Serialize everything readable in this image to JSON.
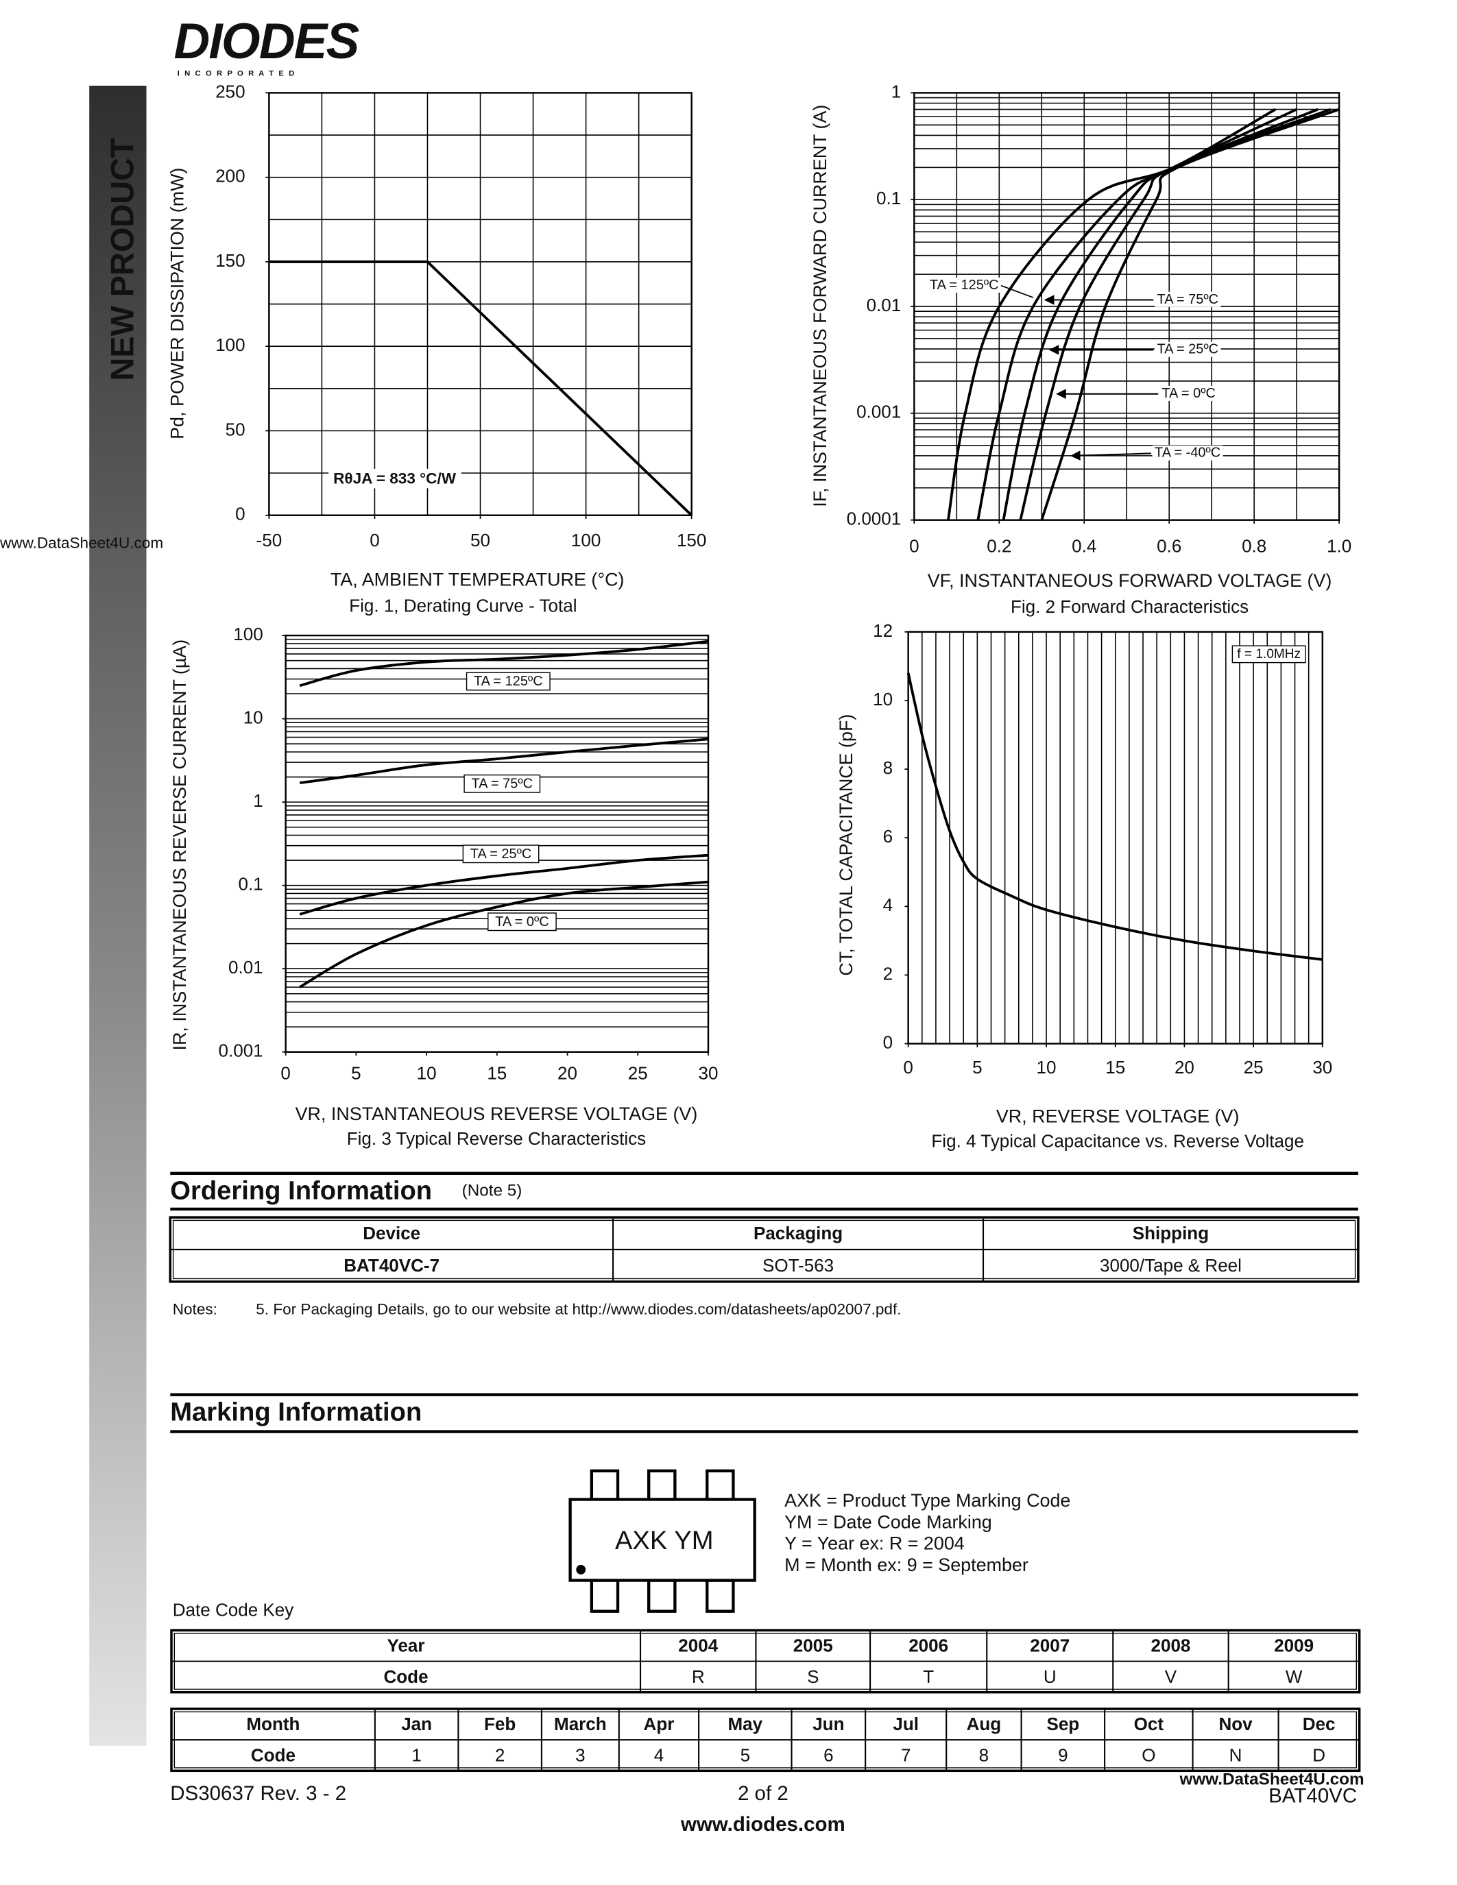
{
  "header": {
    "logo": "DIODES",
    "logo_sub": "I N C O R P O R A T E D"
  },
  "sidebar": "NEW PRODUCT",
  "watermark": "www.DataSheet4U.com",
  "chart_data": [
    {
      "type": "line",
      "interpolation": "linear",
      "title": "Fig. 1, Derating Curve - Total",
      "y_label": "Pd, POWER DISSIPATION (mW)",
      "x_label": "TA, AMBIENT TEMPERATURE (°C)",
      "annotation": "RθJA = 833 °C/W",
      "xlim": [
        -50,
        150
      ],
      "ylim": [
        0,
        250
      ],
      "xticks": [
        -50,
        0,
        50,
        100,
        150
      ],
      "yticks": [
        0,
        50,
        100,
        150,
        200,
        250
      ],
      "xgrid": [
        -50,
        -25,
        0,
        25,
        50,
        75,
        100,
        125,
        150
      ],
      "ygrid": [
        0,
        25,
        50,
        75,
        100,
        125,
        150,
        175,
        200,
        225,
        250
      ],
      "series": [
        {
          "color": "#000000",
          "x": [
            -50,
            25,
            150
          ],
          "values": [
            150,
            150,
            0
          ]
        }
      ]
    },
    {
      "type": "line",
      "interpolation": "smooth",
      "ylog": true,
      "title": "Fig. 2  Forward Characteristics",
      "y_label": "IF, INSTANTANEOUS FORWARD CURRENT (A)",
      "x_label": "VF, INSTANTANEOUS FORWARD VOLTAGE (V)",
      "xlim": [
        0,
        1
      ],
      "ylim": [
        0.0001,
        1
      ],
      "xticks": [
        0,
        0.2,
        0.4,
        0.6,
        0.8,
        {
          "value": 1,
          "label": "1.0"
        }
      ],
      "yticks": [
        0.0001,
        0.001,
        0.01,
        0.1,
        1
      ],
      "xgrid": [
        0,
        0.1,
        0.2,
        0.3,
        0.4,
        0.5,
        0.6,
        0.7,
        0.8,
        0.9,
        1
      ],
      "ygrid": [
        0.0001,
        0.0002,
        0.0003,
        0.0004,
        0.0005,
        0.0006,
        0.0007,
        0.0008,
        0.0009,
        0.001,
        0.002,
        0.003,
        0.004,
        0.005,
        0.006,
        0.007,
        0.008,
        0.009,
        0.01,
        0.02,
        0.03,
        0.04,
        0.05,
        0.06,
        0.07,
        0.08,
        0.09,
        0.1,
        0.2,
        0.3,
        0.4,
        0.5,
        0.6,
        0.7,
        0.8,
        0.9,
        1
      ],
      "series": [
        {
          "name": "TA = 125ºC",
          "color": "#000000",
          "x": [
            0.08,
            0.12,
            0.2,
            0.41,
            0.61,
            0.85
          ],
          "values": [
            0.0001,
            0.001,
            0.01,
            0.1,
            0.2,
            0.7
          ]
        },
        {
          "name": "TA = 75ºC",
          "color": "#000000",
          "x": [
            0.15,
            0.2,
            0.28,
            0.48,
            0.61,
            0.9
          ],
          "values": [
            0.0001,
            0.001,
            0.01,
            0.1,
            0.2,
            0.7
          ]
        },
        {
          "name": "TA = 25ºC",
          "color": "#000000",
          "x": [
            0.21,
            0.26,
            0.34,
            0.51,
            0.61,
            0.95
          ],
          "values": [
            0.0001,
            0.001,
            0.01,
            0.1,
            0.2,
            0.7
          ]
        },
        {
          "name": "TA = 0ºC",
          "color": "#000000",
          "x": [
            0.25,
            0.31,
            0.39,
            0.54,
            0.61,
            0.98
          ],
          "values": [
            0.0001,
            0.001,
            0.01,
            0.1,
            0.2,
            0.7
          ]
        },
        {
          "name": "TA = -40ºC",
          "color": "#000000",
          "x": [
            0.3,
            0.38,
            0.45,
            0.57,
            0.62,
            1
          ],
          "values": [
            0.0001,
            0.001,
            0.01,
            0.1,
            0.2,
            0.7
          ]
        }
      ]
    },
    {
      "type": "line",
      "interpolation": "smooth",
      "ylog": true,
      "title": "Fig. 3  Typical Reverse Characteristics",
      "y_label": "IR, INSTANTANEOUS REVERSE CURRENT (µA)",
      "x_label": "VR, INSTANTANEOUS REVERSE VOLTAGE (V)",
      "xlim": [
        0,
        30
      ],
      "ylim": [
        0.001,
        100
      ],
      "xticks": [
        0,
        5,
        10,
        15,
        20,
        25,
        30
      ],
      "yticks": [
        0.001,
        0.01,
        0.1,
        1,
        10,
        100
      ],
      "ygrid": [
        0.001,
        0.002,
        0.003,
        0.004,
        0.005,
        0.006,
        0.007,
        0.008,
        0.009,
        0.01,
        0.02,
        0.03,
        0.04,
        0.05,
        0.06,
        0.07,
        0.08,
        0.09,
        0.1,
        0.2,
        0.3,
        0.4,
        0.5,
        0.6,
        0.7,
        0.8,
        0.9,
        1,
        2,
        3,
        4,
        5,
        6,
        7,
        8,
        9,
        10,
        20,
        30,
        40,
        50,
        60,
        70,
        80,
        90,
        100
      ],
      "series": [
        {
          "name": "TA = 125ºC",
          "color": "#000000",
          "x": [
            1,
            5,
            10,
            15,
            20,
            25,
            30
          ],
          "values": [
            25,
            38,
            48,
            52,
            58,
            68,
            85
          ]
        },
        {
          "name": "TA = 75ºC",
          "color": "#000000",
          "x": [
            1,
            5,
            10,
            15,
            20,
            25,
            30
          ],
          "values": [
            1.7,
            2.1,
            2.8,
            3.3,
            4,
            4.8,
            5.7
          ]
        },
        {
          "name": "TA = 25ºC",
          "color": "#000000",
          "x": [
            1,
            5,
            10,
            15,
            20,
            25,
            30
          ],
          "values": [
            0.045,
            0.07,
            0.1,
            0.13,
            0.16,
            0.2,
            0.23
          ]
        },
        {
          "name": "TA = 0ºC",
          "color": "#000000",
          "x": [
            1,
            5,
            10,
            15,
            20,
            25,
            30
          ],
          "values": [
            0.006,
            0.015,
            0.033,
            0.055,
            0.08,
            0.095,
            0.11
          ]
        }
      ]
    },
    {
      "type": "line",
      "interpolation": "smooth",
      "title": "Fig. 4  Typical Capacitance vs. Reverse Voltage",
      "y_label": "CT, TOTAL CAPACITANCE (pF)",
      "x_label": "VR, REVERSE VOLTAGE (V)",
      "annotation": "f = 1.0MHz",
      "xlim": [
        0,
        30
      ],
      "ylim": [
        0,
        12
      ],
      "xticks": [
        0,
        5,
        10,
        15,
        20,
        25,
        30
      ],
      "yticks": [
        0,
        2,
        4,
        6,
        8,
        10,
        12
      ],
      "xgrid": [
        0,
        1,
        2,
        3,
        4,
        5,
        6,
        7,
        8,
        9,
        10,
        11,
        12,
        13,
        14,
        15,
        16,
        17,
        18,
        19,
        20,
        21,
        22,
        23,
        24,
        25,
        26,
        27,
        28,
        29,
        30
      ],
      "series": [
        {
          "color": "#000000",
          "x": [
            0,
            1,
            2,
            3,
            4,
            5,
            7.5,
            10,
            15,
            20,
            25,
            30
          ],
          "values": [
            10.8,
            9,
            7.5,
            6.2,
            5.3,
            4.8,
            4.3,
            3.9,
            3.4,
            3,
            2.7,
            2.45
          ]
        }
      ]
    }
  ],
  "ordering": {
    "title": "Ordering Information",
    "note_ref": "(Note 5)",
    "table": {
      "header": [
        "Device",
        "Packaging",
        "Shipping"
      ],
      "rows": [
        [
          "BAT40VC-7",
          "SOT-563",
          "3000/Tape & Reel"
        ]
      ]
    },
    "notes_label": "Notes:",
    "note": "5.  For Packaging Details, go to our website at http://www.diodes.com/datasheets/ap02007.pdf."
  },
  "marking": {
    "title": "Marking Information",
    "chip_text": "AXK  YM",
    "legend": [
      "AXK = Product Type Marking Code",
      "YM = Date Code Marking",
      "Y = Year ex: R = 2004",
      "M = Month ex: 9 = September"
    ],
    "date_code_key": "Date Code Key",
    "year_table": {
      "rows": [
        [
          "Year",
          "2004",
          "2005",
          "2006",
          "2007",
          "2008",
          "2009"
        ],
        [
          "Code",
          "R",
          "S",
          "T",
          "U",
          "V",
          "W"
        ]
      ]
    },
    "month_table": {
      "rows": [
        [
          "Month",
          "Jan",
          "Feb",
          "March",
          "Apr",
          "May",
          "Jun",
          "Jul",
          "Aug",
          "Sep",
          "Oct",
          "Nov",
          "Dec"
        ],
        [
          "Code",
          "1",
          "2",
          "3",
          "4",
          "5",
          "6",
          "7",
          "8",
          "9",
          "O",
          "N",
          "D"
        ]
      ]
    }
  },
  "footer": {
    "doc": "DS30637 Rev. 3 - 2",
    "page": "2 of 2",
    "url": "www.diodes.com",
    "part": "BAT40VC"
  }
}
